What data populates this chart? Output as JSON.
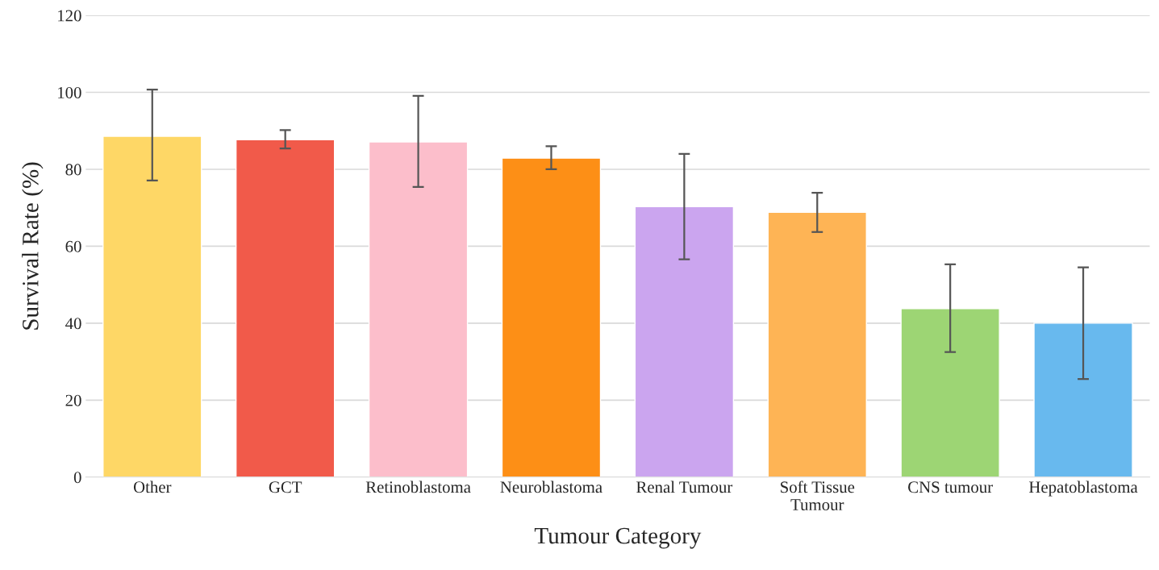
{
  "chart_data": {
    "type": "bar",
    "xlabel": "Tumour Category",
    "ylabel": "Survival Rate (%)",
    "categories": [
      "Other",
      "GCT",
      "Retinoblastoma",
      "Neuroblastoma",
      "Renal Tumour",
      "Soft Tissue\nTumour",
      "CNS tumour",
      "Hepatoblastoma"
    ],
    "values": [
      88.6,
      87.7,
      87.1,
      82.9,
      70.3,
      68.8,
      43.8,
      40.0
    ],
    "colors": [
      "#fed766",
      "#f15a4a",
      "#fcbecb",
      "#fd8f16",
      "#cba5ef",
      "#feb455",
      "#9dd574",
      "#68b9ee"
    ],
    "errors": [
      [
        77.1,
        100.7
      ],
      [
        85.4,
        90.2
      ],
      [
        75.4,
        99.1
      ],
      [
        80.0,
        86.0
      ],
      [
        56.6,
        84.0
      ],
      [
        63.7,
        73.9
      ],
      [
        32.5,
        55.3
      ],
      [
        25.5,
        54.5
      ]
    ],
    "ylim": [
      0,
      120
    ],
    "yticks": [
      0,
      20,
      40,
      60,
      80,
      100,
      120
    ],
    "grid": "y",
    "legend": false
  }
}
